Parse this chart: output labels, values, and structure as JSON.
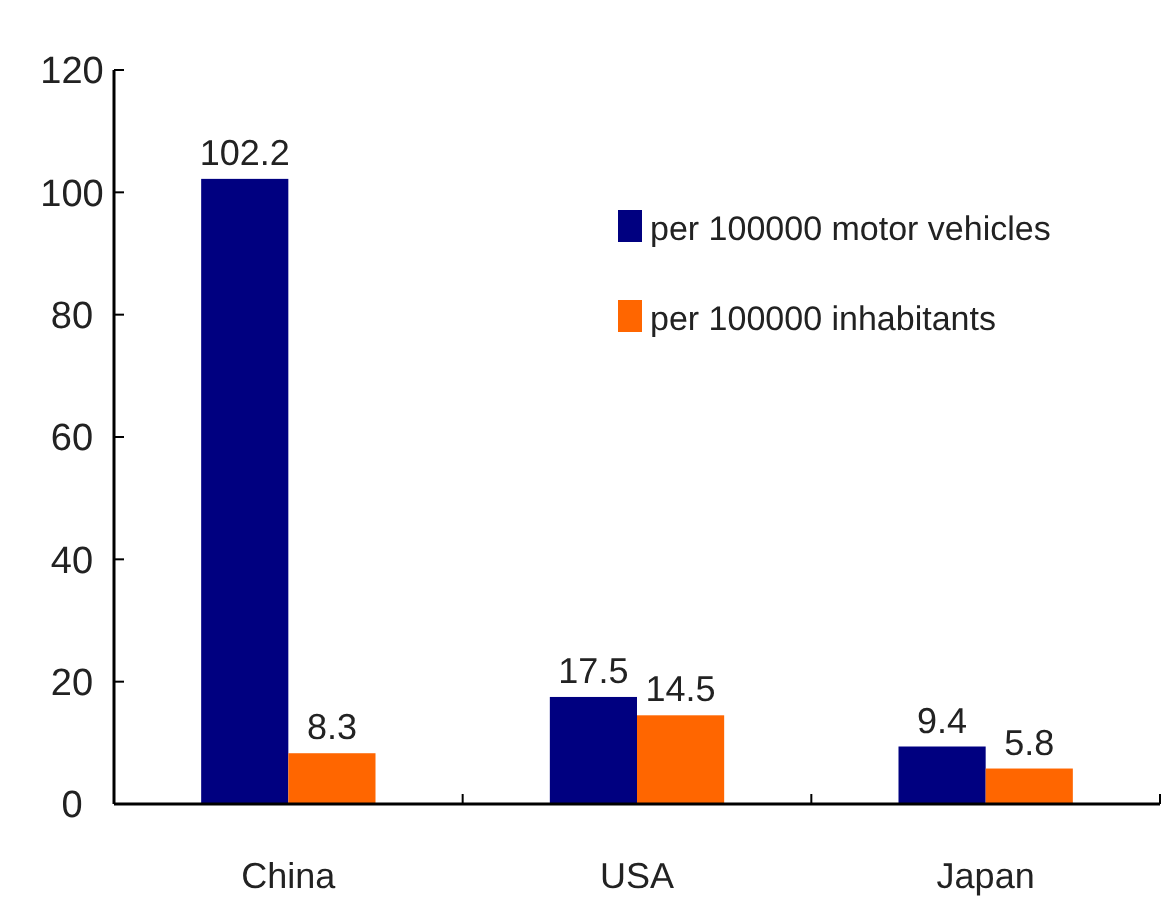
{
  "chart_data": {
    "type": "bar",
    "categories": [
      "China",
      "USA",
      "Japan"
    ],
    "series": [
      {
        "name": "per 100000 motor vehicles",
        "color": "#000080",
        "values": [
          102.2,
          17.5,
          9.4
        ]
      },
      {
        "name": "per 100000 inhabitants",
        "color": "#ff6600",
        "values": [
          8.3,
          14.5,
          5.8
        ]
      }
    ],
    "ylim": [
      0,
      120
    ],
    "yticks": [
      0,
      20,
      40,
      60,
      80,
      100,
      120
    ],
    "data_labels": true,
    "legend": "top right"
  }
}
